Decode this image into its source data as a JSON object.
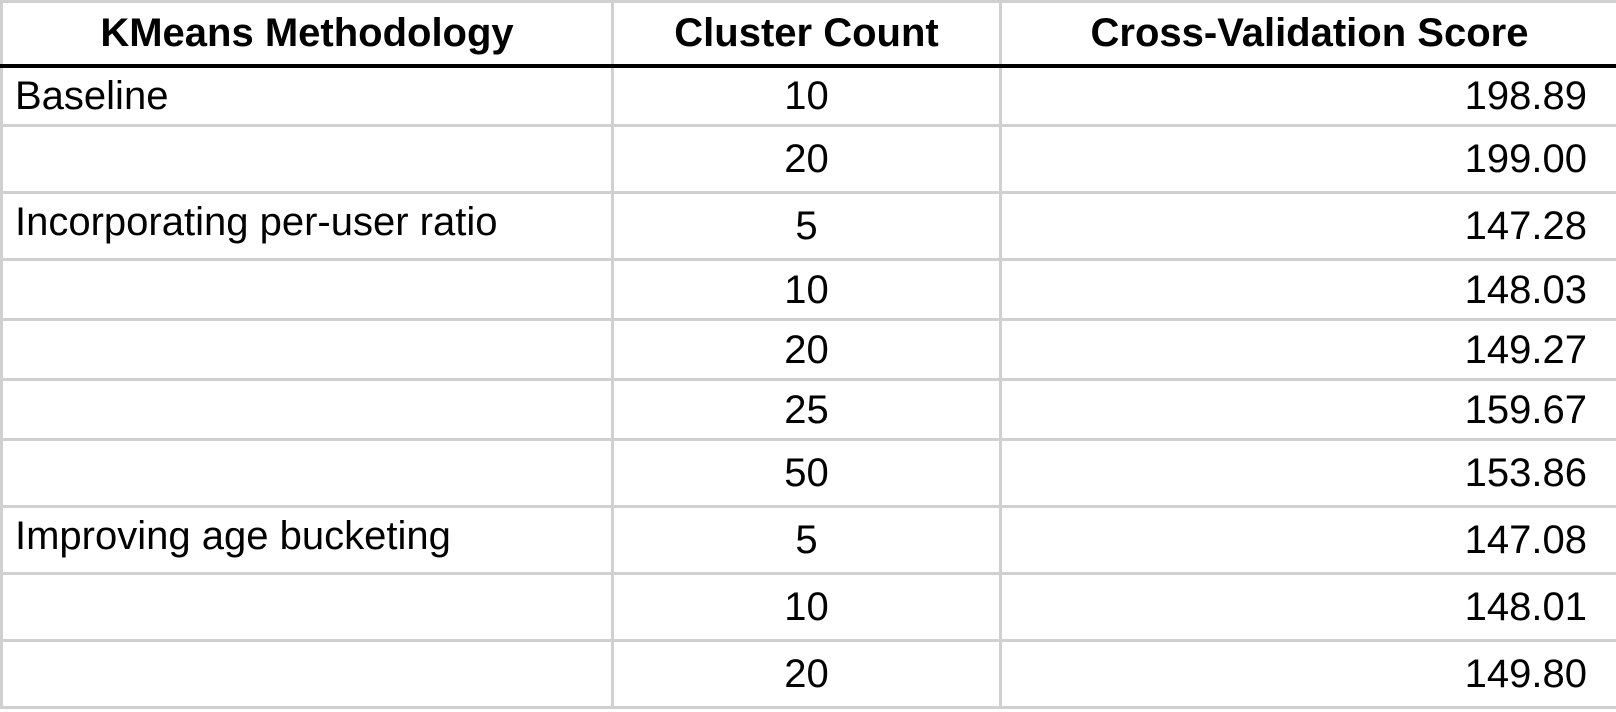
{
  "table": {
    "headers": {
      "method": "KMeans Methodology",
      "count": "Cluster Count",
      "score": "Cross-Validation Score"
    },
    "rows": [
      {
        "method": "Baseline",
        "count": "10",
        "score": "198.89"
      },
      {
        "method": "",
        "count": "20",
        "score": "199.00"
      },
      {
        "method": "Incorporating per-user ratio",
        "count": "5",
        "score": "147.28"
      },
      {
        "method": "",
        "count": "10",
        "score": "148.03"
      },
      {
        "method": "",
        "count": "20",
        "score": "149.27"
      },
      {
        "method": "",
        "count": "25",
        "score": "159.67"
      },
      {
        "method": "",
        "count": "50",
        "score": "153.86"
      },
      {
        "method": "Improving age bucketing",
        "count": "5",
        "score": "147.08"
      },
      {
        "method": "",
        "count": "10",
        "score": "148.01"
      },
      {
        "method": "",
        "count": "20",
        "score": "149.80"
      }
    ]
  }
}
